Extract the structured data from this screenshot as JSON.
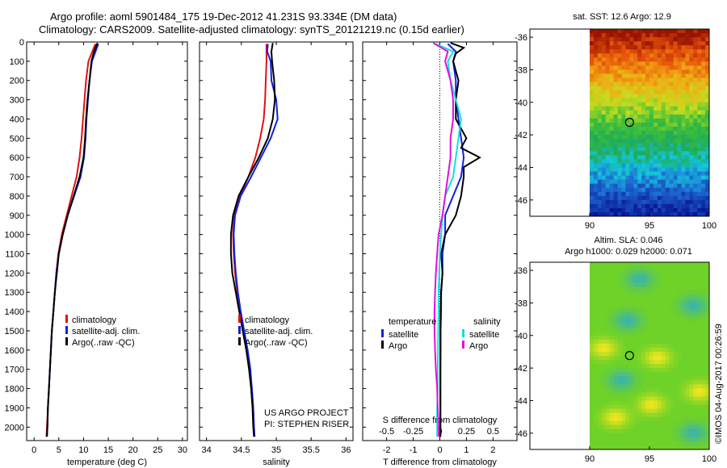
{
  "header": {
    "title_line1": "Argo profile: aoml 5901484_175 19-Dec-2012 41.231S 93.334E (DM data)",
    "title_line2": "Climatology: CARS2009. Satellite-adjusted climatology: synTS_20121219.nc (0.15d earlier)"
  },
  "credits": {
    "project": "US ARGO PROJECT",
    "pi": "PI: STEPHEN RISER",
    "stamp": "©IMOS 04-Aug-2017 00:26:59"
  },
  "colors": {
    "climatology": "#e41010",
    "satellite": "#1020e0",
    "argo": "#000000",
    "sal_satellite": "#10e0e0",
    "sal_argo": "#e010e0"
  },
  "chart_data": [
    {
      "type": "line",
      "name": "temperature-panel",
      "xlabel": "temperature (deg C)",
      "ylabel": "",
      "xlim": [
        -1.5,
        31
      ],
      "ylim": [
        2070,
        0
      ],
      "xticks": [
        "0",
        "5",
        "10",
        "15",
        "20",
        "25",
        "30"
      ],
      "yticks": [
        "0",
        "100",
        "200",
        "300",
        "400",
        "500",
        "600",
        "700",
        "800",
        "900",
        "1000",
        "1100",
        "1200",
        "1300",
        "1400",
        "1500",
        "1600",
        "1700",
        "1800",
        "1900",
        "2000"
      ],
      "legend": [
        "climatology",
        "satellite-adj. clim.",
        "Argo(..raw -QC)"
      ],
      "legend_position": "lower-right",
      "series": [
        {
          "name": "climatology",
          "color": "#e41010",
          "depth": [
            10,
            100,
            200,
            300,
            400,
            500,
            600,
            700,
            800,
            900,
            1000,
            1100,
            1200,
            1300,
            1400,
            1500,
            1600,
            1700,
            1800,
            1900,
            2000,
            2050
          ],
          "x": [
            12.4,
            11.0,
            10.5,
            10.2,
            9.9,
            9.6,
            9.2,
            8.6,
            7.6,
            6.6,
            5.6,
            4.9,
            4.5,
            4.2,
            3.9,
            3.6,
            3.4,
            3.2,
            3.0,
            2.8,
            2.6,
            2.5
          ]
        },
        {
          "name": "satellite-adj. clim.",
          "color": "#1020e0",
          "depth": [
            10,
            100,
            200,
            300,
            400,
            500,
            600,
            700,
            800,
            900,
            1000,
            1100,
            1200,
            1300,
            1400,
            1500,
            1600,
            1700,
            1800,
            1900,
            2000,
            2050
          ],
          "x": [
            13.0,
            11.7,
            11.2,
            10.9,
            10.6,
            10.4,
            10.1,
            9.4,
            8.1,
            6.8,
            5.8,
            5.0,
            4.5,
            4.2,
            3.9,
            3.6,
            3.4,
            3.2,
            3.0,
            2.8,
            2.7,
            2.6
          ]
        },
        {
          "name": "Argo(..raw -QC)",
          "color": "#000000",
          "depth": [
            5,
            50,
            100,
            200,
            300,
            400,
            500,
            600,
            700,
            800,
            900,
            1000,
            1100,
            1200,
            1300,
            1400,
            1500,
            1600,
            1700,
            1800,
            1900,
            2000,
            2050
          ],
          "x": [
            12.8,
            12.1,
            11.6,
            11.2,
            10.8,
            10.5,
            10.3,
            10.0,
            9.2,
            8.0,
            6.8,
            5.8,
            5.0,
            4.6,
            4.2,
            3.9,
            3.6,
            3.4,
            3.2,
            3.0,
            2.8,
            2.7,
            2.6
          ]
        }
      ]
    },
    {
      "type": "line",
      "name": "salinity-panel",
      "xlabel": "salinity",
      "xlim": [
        33.9,
        36.1
      ],
      "ylim": [
        2070,
        0
      ],
      "xticks": [
        "34",
        "34.5",
        "35",
        "35.5",
        "36"
      ],
      "legend": [
        "climatology",
        "satellite-adj. clim.",
        "Argo(..raw -QC)"
      ],
      "legend_position": "lower-right",
      "series": [
        {
          "name": "climatology",
          "color": "#e41010",
          "depth": [
            10,
            100,
            200,
            300,
            400,
            500,
            600,
            700,
            800,
            900,
            1000,
            1100,
            1200,
            1300,
            1400,
            1500,
            1600,
            1700,
            1800,
            1900,
            2000,
            2050
          ],
          "x": [
            34.86,
            34.86,
            34.85,
            34.84,
            34.82,
            34.77,
            34.7,
            34.6,
            34.48,
            34.4,
            34.38,
            34.39,
            34.41,
            34.44,
            34.48,
            34.53,
            34.58,
            34.62,
            34.65,
            34.67,
            34.68,
            34.69
          ]
        },
        {
          "name": "satellite-adj. clim.",
          "color": "#1020e0",
          "depth": [
            10,
            50,
            100,
            200,
            300,
            400,
            500,
            600,
            700,
            800,
            900,
            1000,
            1100,
            1200,
            1300,
            1400,
            1500,
            1600,
            1700,
            1800,
            1900,
            2000,
            2050
          ],
          "x": [
            34.88,
            34.87,
            34.92,
            34.93,
            35.0,
            35.02,
            34.92,
            34.78,
            34.64,
            34.49,
            34.41,
            34.39,
            34.4,
            34.42,
            34.45,
            34.49,
            34.54,
            34.59,
            34.63,
            34.65,
            34.67,
            34.68,
            34.69
          ]
        },
        {
          "name": "Argo(..raw -QC)",
          "color": "#000000",
          "depth": [
            5,
            50,
            100,
            200,
            300,
            400,
            500,
            600,
            700,
            800,
            900,
            1000,
            1100,
            1200,
            1300,
            1400,
            1500,
            1600,
            1700,
            1800,
            1900,
            2000,
            2050
          ],
          "x": [
            34.95,
            34.93,
            34.94,
            34.97,
            34.98,
            34.95,
            34.88,
            34.75,
            34.6,
            34.46,
            34.38,
            34.35,
            34.35,
            34.37,
            34.42,
            34.47,
            34.52,
            34.57,
            34.61,
            34.64,
            34.66,
            34.67,
            34.68
          ]
        }
      ]
    },
    {
      "type": "line",
      "name": "difference-panel",
      "xlabel": "T difference from climatology",
      "xlabel_top": "S difference from climatology",
      "xlim": [
        -2.9,
        2.9
      ],
      "ylim": [
        2070,
        0
      ],
      "xticks": [
        "-2",
        "-1",
        "0",
        "1",
        "2"
      ],
      "xticks_top": [
        "-0.5",
        "-0.25",
        "0",
        "0.25",
        "0.5"
      ],
      "legend_groups": {
        "temperature": [
          "satellite",
          "Argo"
        ],
        "salinity": [
          "satellite",
          "Argo"
        ]
      },
      "legend_titles": [
        "temperature",
        "salinity"
      ],
      "legend_position": "lower-center",
      "series": [
        {
          "name": "temperature satellite",
          "color": "#1020e0",
          "depth": [
            10,
            50,
            100,
            200,
            300,
            400,
            500,
            600,
            700,
            800,
            900,
            1000,
            1100,
            1200,
            1300,
            1400,
            1500,
            1600,
            1700,
            1800,
            1900,
            2000,
            2050
          ],
          "x": [
            0.3,
            0.6,
            0.5,
            0.6,
            0.6,
            0.7,
            0.8,
            0.9,
            0.8,
            0.5,
            0.2,
            0.2,
            0.1,
            0.1,
            0.05,
            0.05,
            0.03,
            0.03,
            0.02,
            0.02,
            0.02,
            0.02,
            0.02
          ]
        },
        {
          "name": "temperature Argo",
          "color": "#000000",
          "depth": [
            5,
            30,
            60,
            100,
            200,
            300,
            400,
            500,
            550,
            600,
            650,
            700,
            800,
            900,
            1000,
            1100,
            1200,
            1300,
            1400,
            1500,
            1600,
            1700,
            1800,
            1900,
            2000,
            2050
          ],
          "x": [
            0.4,
            0.9,
            0.6,
            0.5,
            0.7,
            0.6,
            0.6,
            1.0,
            0.8,
            1.5,
            0.9,
            0.9,
            0.8,
            0.6,
            0.2,
            0.05,
            0.1,
            0.05,
            0.03,
            0.02,
            0.02,
            0.02,
            0.02,
            0.02,
            0.02,
            0.02
          ]
        },
        {
          "name": "salinity satellite",
          "color": "#10e0e0",
          "depth": [
            10,
            50,
            100,
            200,
            300,
            400,
            500,
            600,
            700,
            800,
            900,
            1000,
            1100,
            1200,
            1300,
            1400,
            1500,
            1600,
            1700,
            1800,
            1900,
            2000,
            2050
          ],
          "x": [
            -0.15,
            0.5,
            0.3,
            0.4,
            0.6,
            0.8,
            0.7,
            0.6,
            0.5,
            0.2,
            0.1,
            0.05,
            0.0,
            -0.02,
            -0.05,
            -0.05,
            -0.06,
            -0.07,
            -0.08,
            -0.08,
            -0.1,
            -0.1,
            -0.1
          ]
        },
        {
          "name": "salinity Argo",
          "color": "#e010e0",
          "depth": [
            5,
            50,
            100,
            200,
            300,
            400,
            500,
            600,
            700,
            800,
            900,
            1000,
            1100,
            1200,
            1300,
            1400,
            1500,
            1600,
            1700,
            1800,
            1900,
            2000,
            2050
          ],
          "x": [
            -0.25,
            0.3,
            0.2,
            0.4,
            0.5,
            0.5,
            0.4,
            0.4,
            0.3,
            0.2,
            0.1,
            -0.05,
            -0.1,
            -0.15,
            -0.18,
            -0.2,
            -0.2,
            -0.18,
            -0.15,
            -0.1,
            -0.08,
            -0.05,
            -0.05
          ]
        }
      ]
    },
    {
      "type": "heatmap",
      "name": "sst-map",
      "title": "sat. SST: 12.6  Argo: 12.9",
      "xlim": [
        85,
        100
      ],
      "ylim": [
        -47,
        -35.5
      ],
      "xticks": [
        "90",
        "95",
        "100"
      ],
      "yticks": [
        "-36",
        "-38",
        "-40",
        "-42",
        "-44",
        "-46"
      ],
      "marker": {
        "lon": 93.334,
        "lat": -41.231
      }
    },
    {
      "type": "heatmap",
      "name": "sla-map",
      "title_line1": "Altim. SLA: 0.046",
      "title_line2": "Argo h1000: 0.029 h2000: 0.071",
      "xlim": [
        85,
        100
      ],
      "ylim": [
        -47,
        -35.5
      ],
      "xticks": [
        "90",
        "95",
        "100"
      ],
      "yticks": [
        "-36",
        "-38",
        "-40",
        "-42",
        "-44",
        "-46"
      ],
      "marker": {
        "lon": 93.334,
        "lat": -41.231
      }
    }
  ]
}
